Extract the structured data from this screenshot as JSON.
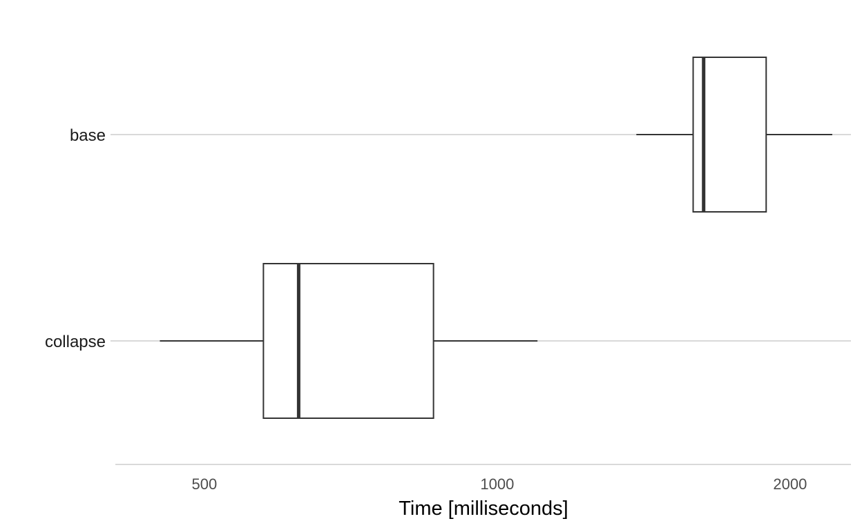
{
  "chart_data": {
    "type": "boxplot",
    "orientation": "horizontal",
    "xlabel": "Time [milliseconds]",
    "ylabel": "",
    "x_scale": "log10",
    "xlim": [
      405,
      2310
    ],
    "x_ticks": [
      500,
      1000,
      2000
    ],
    "x_tick_labels": [
      "500",
      "1000",
      "2000"
    ],
    "grid": "horizontal major only",
    "legend": "none",
    "categories": [
      "base",
      "collapse"
    ],
    "series": [
      {
        "category": "base",
        "min": 1390,
        "q1": 1590,
        "median": 1630,
        "q3": 1890,
        "max": 2210
      },
      {
        "category": "collapse",
        "min": 450,
        "q1": 575,
        "median": 625,
        "q3": 860,
        "max": 1100
      }
    ],
    "colors": {
      "box_stroke": "#333333",
      "grid": "#d9d9d9",
      "box_fill": "#ffffff"
    }
  }
}
